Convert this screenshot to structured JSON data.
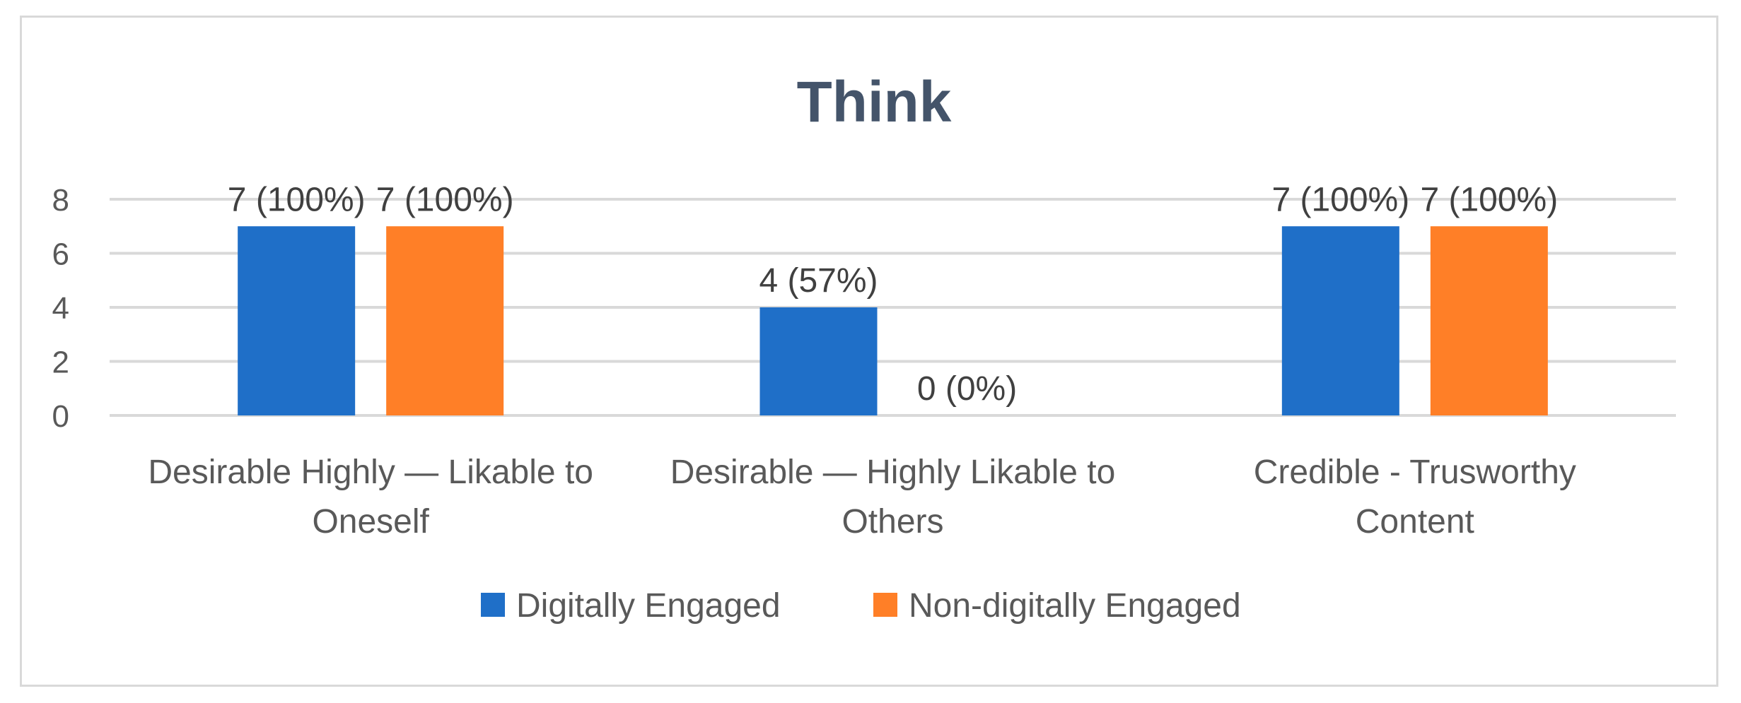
{
  "chart_data": {
    "type": "bar",
    "title": "Think",
    "categories": [
      [
        "Desirable Highly — Likable to",
        "Oneself"
      ],
      [
        "Desirable — Highly Likable to",
        "Others"
      ],
      [
        "Credible - Trusworthy",
        "Content"
      ]
    ],
    "series": [
      {
        "name": "Digitally Engaged",
        "color": "#1f6fc8",
        "values": [
          7,
          4,
          7
        ],
        "labels": [
          "7 (100%)",
          "4 (57%)",
          "7 (100%)"
        ]
      },
      {
        "name": "Non-digitally Engaged",
        "color": "#ff7f27",
        "values": [
          7,
          0,
          7
        ],
        "labels": [
          "7 (100%)",
          "0 (0%)",
          "7 (100%)"
        ]
      }
    ],
    "ylim": [
      0,
      8
    ],
    "yticks": [
      0,
      2,
      4,
      6,
      8
    ],
    "grid": true,
    "legend": "bottom",
    "xlabel": "",
    "ylabel": ""
  }
}
